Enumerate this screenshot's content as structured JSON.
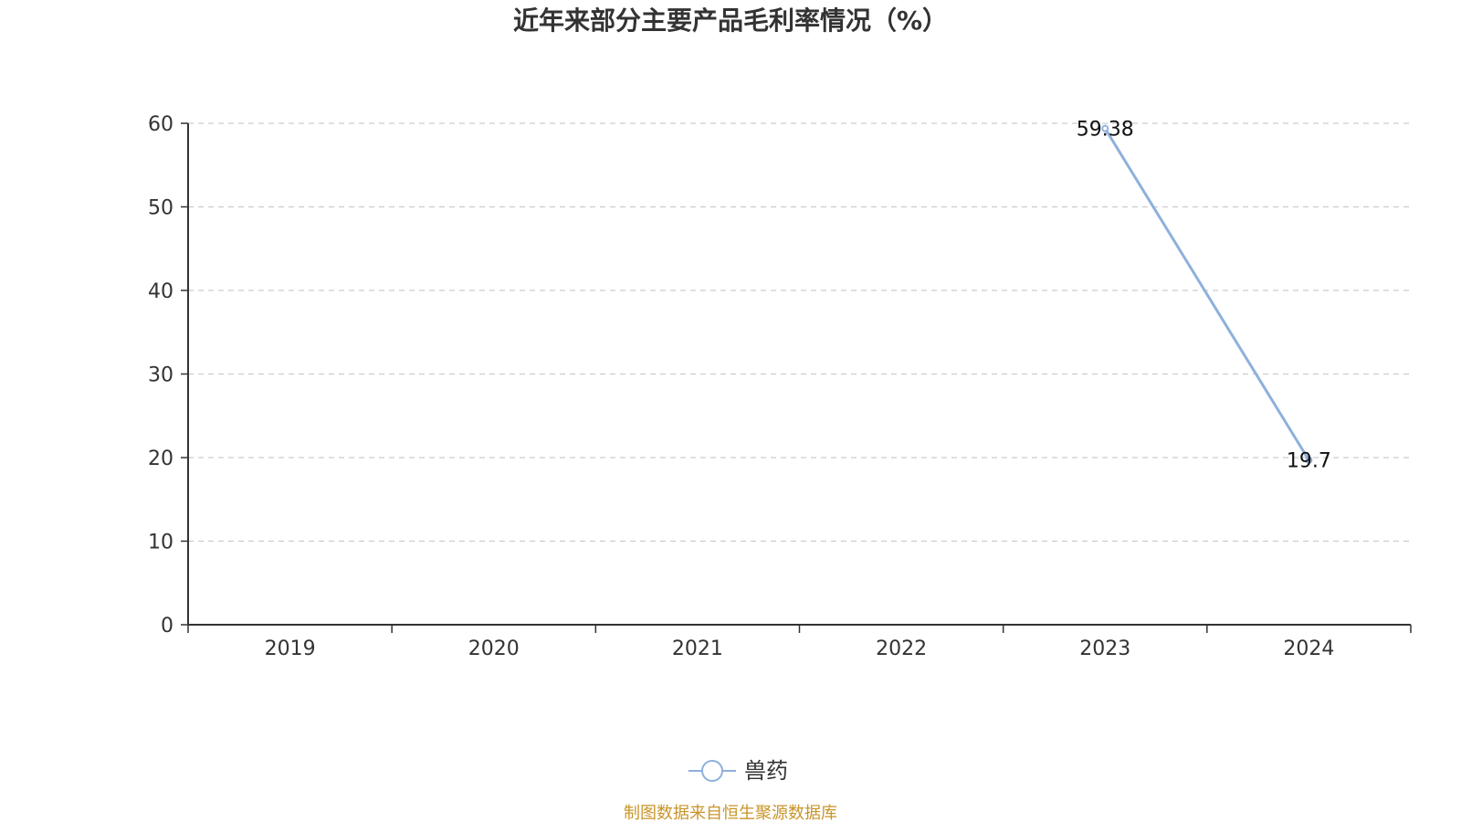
{
  "chart_data": {
    "type": "line",
    "title": "近年来部分主要产品毛利率情况（%）",
    "categories": [
      "2019",
      "2020",
      "2021",
      "2022",
      "2023",
      "2024"
    ],
    "series": [
      {
        "name": "兽药",
        "values": [
          null,
          null,
          null,
          null,
          59.38,
          19.7
        ],
        "labels": [
          "",
          "",
          "",
          "",
          "59.38",
          "19.7"
        ]
      }
    ],
    "y_ticks": [
      "0",
      "10",
      "20",
      "30",
      "40",
      "50",
      "60"
    ],
    "ylim": [
      0,
      60
    ],
    "grid": "horizontal dashed",
    "legend_position": "bottom-center"
  },
  "source_note": "制图数据来自恒生聚源数据库",
  "colors": {
    "series_line": "#8fb0dc",
    "axis": "#333333",
    "grid": "#cccccc",
    "title": "#333333",
    "source_note": "#c8952a"
  }
}
